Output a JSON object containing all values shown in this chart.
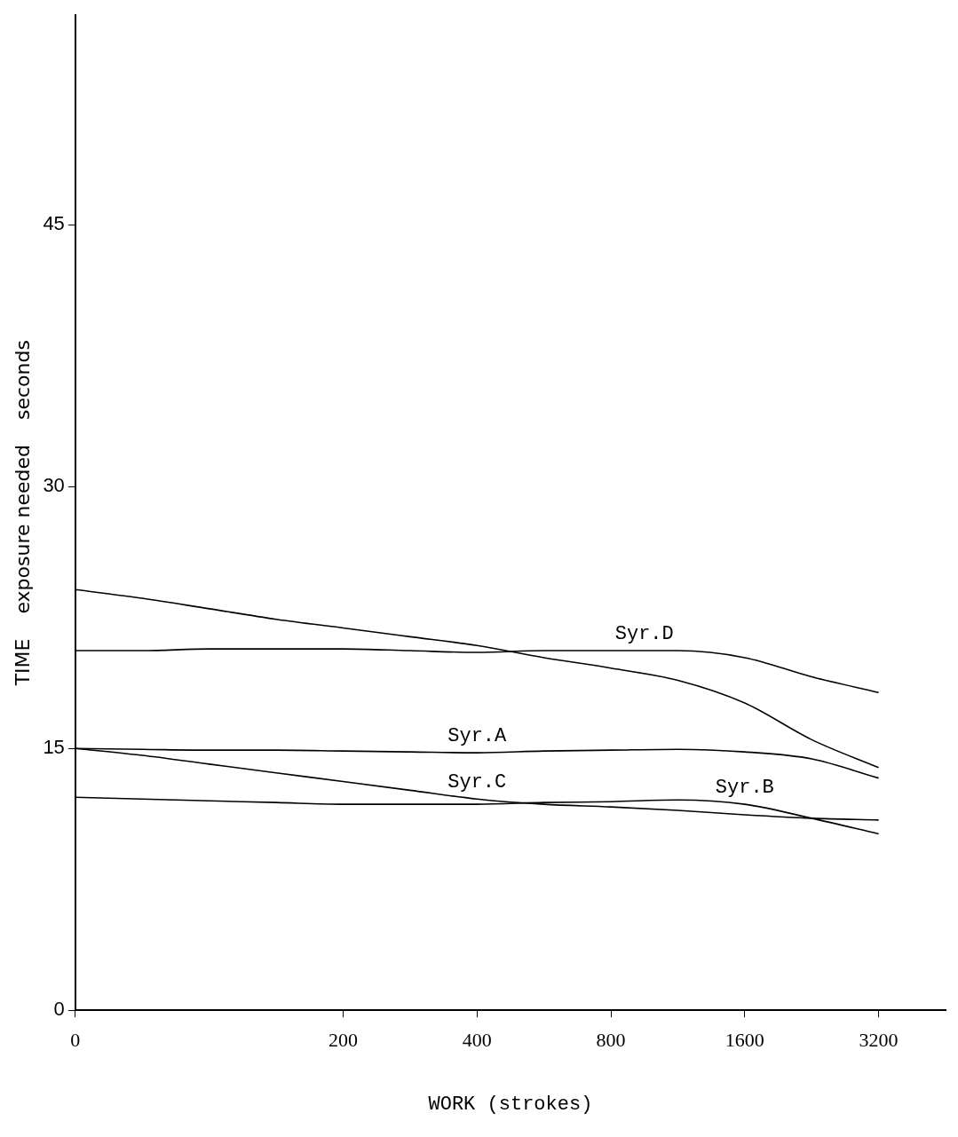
{
  "chart_data": {
    "type": "line",
    "xlabel": "WORK (strokes)",
    "ylabel": "TIME    exposure needed    seconds",
    "categories": [
      "0",
      null,
      null,
      null,
      "200",
      null,
      "400",
      null,
      "800",
      null,
      "1600",
      null,
      "3200",
      null
    ],
    "ylim": [
      0,
      57
    ],
    "yticks": [
      0,
      15,
      30,
      45
    ],
    "grid": false,
    "legend": false,
    "marker": "none",
    "line_style": "solid",
    "series": [
      {
        "color": "#000000",
        "values": [
          24.1,
          23.6,
          23.0,
          22.4,
          21.9,
          21.4,
          20.9,
          20.2,
          19.6,
          18.9,
          17.6,
          15.5,
          13.9,
          null
        ]
      },
      {
        "name": "Syr.D",
        "color": "#000000",
        "values": [
          20.6,
          20.6,
          20.7,
          20.7,
          20.7,
          20.6,
          20.5,
          20.6,
          20.6,
          20.6,
          20.2,
          19.1,
          18.2,
          null
        ]
      },
      {
        "name": "Syr.A",
        "color": "#000000",
        "values": [
          15,
          14.95,
          14.9,
          14.9,
          14.85,
          14.8,
          14.75,
          14.85,
          14.9,
          14.95,
          14.8,
          14.4,
          13.3,
          null
        ]
      },
      {
        "name": "Syr.C",
        "color": "#000000",
        "values": [
          15,
          14.6,
          14.1,
          13.6,
          13.1,
          12.6,
          12.1,
          11.8,
          11.65,
          11.45,
          11.2,
          11.0,
          10.9,
          null
        ]
      },
      {
        "name": "Syr.B",
        "color": "#000000",
        "values": [
          12.2,
          12.1,
          12.0,
          11.9,
          11.8,
          11.8,
          11.8,
          11.9,
          11.95,
          12.05,
          11.8,
          11.0,
          10.1,
          null
        ]
      }
    ]
  }
}
